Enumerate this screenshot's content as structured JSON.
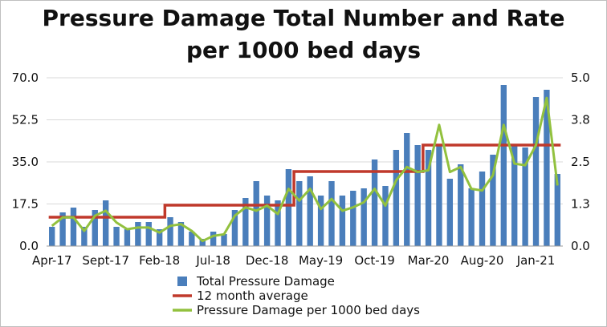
{
  "chart_data": {
    "type": "bar",
    "title_lines": [
      "Pressure Damage Total Number and Rate",
      "per 1000 bed days"
    ],
    "y_left": {
      "min": 0,
      "max": 70,
      "ticks": [
        "0.0",
        "17.5",
        "35.0",
        "52.5",
        "70.0"
      ]
    },
    "y_right": {
      "min": 0,
      "max": 5,
      "ticks": [
        "0.0",
        "1.3",
        "2.5",
        "3.8",
        "5.0"
      ]
    },
    "x_tick_labels": [
      "Apr-17",
      "Sept-17",
      "Feb-18",
      "Jul-18",
      "Dec-18",
      "May-19",
      "Oct-19",
      "Mar-20",
      "Aug-20",
      "Jan-21"
    ],
    "x_tick_index": [
      0,
      5,
      10,
      15,
      20,
      25,
      30,
      35,
      40,
      45
    ],
    "grid": true,
    "legend_position": "bottom",
    "series": [
      {
        "name": "Total Pressure Damage",
        "kind": "bar",
        "axis": "left",
        "color": "#4a7ebb",
        "values": [
          8,
          14,
          16,
          8,
          15,
          19,
          8,
          7,
          10,
          10,
          7,
          12,
          10,
          6,
          3,
          6,
          5,
          15,
          20,
          27,
          21,
          19,
          32,
          27,
          29,
          21,
          27,
          21,
          23,
          24,
          36,
          25,
          40,
          47,
          42,
          40,
          42,
          28,
          34,
          24,
          31,
          38,
          67,
          42,
          41,
          62,
          65,
          30
        ]
      },
      {
        "name": "12 month average",
        "kind": "line",
        "axis": "left",
        "color": "#c0392b",
        "values": [
          12,
          12,
          12,
          12,
          12,
          12,
          12,
          12,
          12,
          12,
          12,
          17,
          17,
          17,
          17,
          17,
          17,
          17,
          17,
          17,
          17,
          17,
          17,
          31,
          31,
          31,
          31,
          31,
          31,
          31,
          31,
          31,
          31,
          31,
          31,
          42,
          42,
          42,
          42,
          42,
          42,
          42,
          42,
          42,
          42,
          42,
          42,
          42
        ]
      },
      {
        "name": "Pressure Damage per 1000 bed days",
        "kind": "line",
        "axis": "right",
        "color": "#92c13e",
        "values": [
          0.6,
          0.85,
          0.85,
          0.45,
          0.9,
          1.05,
          0.7,
          0.5,
          0.55,
          0.55,
          0.4,
          0.6,
          0.65,
          0.45,
          0.15,
          0.3,
          0.35,
          0.9,
          1.15,
          1.05,
          1.2,
          0.95,
          1.7,
          1.35,
          1.7,
          1.1,
          1.4,
          1.05,
          1.15,
          1.3,
          1.7,
          1.2,
          1.95,
          2.35,
          2.2,
          2.25,
          3.6,
          2.2,
          2.35,
          1.7,
          1.65,
          2.1,
          3.6,
          2.45,
          2.4,
          3.0,
          4.4,
          1.8
        ]
      }
    ]
  }
}
